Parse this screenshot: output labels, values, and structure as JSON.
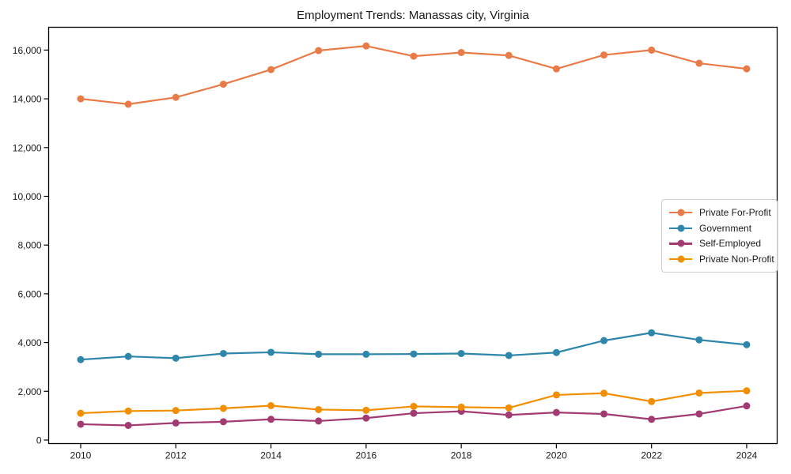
{
  "figure": {
    "background": "#ffffff",
    "text_color": "#1a1a1a",
    "spine_color": "#000000"
  },
  "chart_data": {
    "type": "line",
    "title": "Employment Trends: Manassas city, Virginia",
    "xlabel": "",
    "ylabel": "",
    "grid": false,
    "legend_position": "center-right",
    "x": [
      2010,
      2011,
      2012,
      2013,
      2014,
      2015,
      2016,
      2017,
      2018,
      2019,
      2020,
      2021,
      2022,
      2023,
      2024
    ],
    "x_tick_values": [
      2010,
      2012,
      2014,
      2016,
      2018,
      2020,
      2022,
      2024
    ],
    "x_tick_labels": [
      "2010",
      "2012",
      "2014",
      "2016",
      "2018",
      "2020",
      "2022",
      "2024"
    ],
    "y_tick_values": [
      0,
      2000,
      4000,
      6000,
      8000,
      10000,
      12000,
      14000,
      16000
    ],
    "y_tick_labels": [
      "0",
      "2,000",
      "4,000",
      "6,000",
      "8,000",
      "10,000",
      "12,000",
      "14,000",
      "16,000"
    ],
    "ylim": [
      0,
      16900
    ],
    "series": [
      {
        "name": "Private For-Profit",
        "color": "#e97b49",
        "values": [
          14000,
          13780,
          14060,
          14600,
          15200,
          15980,
          16170,
          15750,
          15900,
          15780,
          15230,
          15800,
          16000,
          15460,
          15230
        ]
      },
      {
        "name": "Government",
        "color": "#2e86ab",
        "values": [
          3300,
          3430,
          3360,
          3550,
          3600,
          3520,
          3520,
          3530,
          3550,
          3470,
          3590,
          4080,
          4400,
          4110,
          3910
        ]
      },
      {
        "name": "Self-Employed",
        "color": "#a23b72",
        "values": [
          650,
          600,
          700,
          750,
          850,
          780,
          900,
          1100,
          1180,
          1030,
          1130,
          1070,
          850,
          1070,
          1400
        ]
      },
      {
        "name": "Private Non-Profit",
        "color": "#f18f01",
        "values": [
          1100,
          1190,
          1210,
          1300,
          1410,
          1250,
          1220,
          1380,
          1350,
          1320,
          1850,
          1920,
          1580,
          1930,
          2020
        ]
      }
    ]
  }
}
